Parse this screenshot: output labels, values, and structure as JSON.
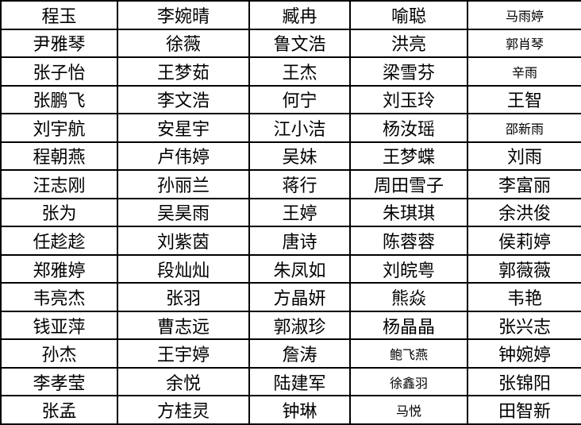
{
  "table": {
    "rows": [
      [
        "程玉",
        "李婉晴",
        "臧冉",
        "喻聪",
        "马雨婷"
      ],
      [
        "尹雅琴",
        "徐薇",
        "鲁文浩",
        "洪亮",
        "郭肖琴"
      ],
      [
        "张子怡",
        "王梦茹",
        "王杰",
        "梁雪芬",
        "辛雨"
      ],
      [
        "张鹏飞",
        "李文浩",
        "何宁",
        "刘玉玲",
        "王智"
      ],
      [
        "刘宇航",
        "安星宇",
        "江小洁",
        "杨汝瑶",
        "邵新雨"
      ],
      [
        "程朝燕",
        "卢伟婷",
        "吴妹",
        "王梦蝶",
        "刘雨"
      ],
      [
        "汪志刚",
        "孙丽兰",
        "蒋行",
        "周田雪子",
        "李富丽"
      ],
      [
        "张为",
        "吴昊雨",
        "王婷",
        "朱琪琪",
        "余洪俊"
      ],
      [
        "任趁趁",
        "刘紫茵",
        "唐诗",
        "陈蓉蓉",
        "侯莉婷"
      ],
      [
        "郑雅婷",
        "段灿灿",
        "朱凤如",
        "刘皖粤",
        "郭薇薇"
      ],
      [
        "韦亮杰",
        "张羽",
        "方晶妍",
        "熊焱",
        "韦艳"
      ],
      [
        "钱亚萍",
        "曹志远",
        "郭淑珍",
        "杨晶晶",
        "张兴志"
      ],
      [
        "孙杰",
        "王宇婷",
        "詹涛",
        "鲍飞燕",
        "钟婉婷"
      ],
      [
        "李孝莹",
        "余悦",
        "陆建军",
        "徐鑫羽",
        "张锦阳"
      ],
      [
        "张孟",
        "方桂灵",
        "钟琳",
        "马悦",
        "田智新"
      ]
    ],
    "small_font_cells": [
      "马雨婷",
      "郭肖琴",
      "辛雨",
      "邵新雨",
      "鲍飞燕",
      "徐鑫羽",
      "马悦"
    ]
  }
}
